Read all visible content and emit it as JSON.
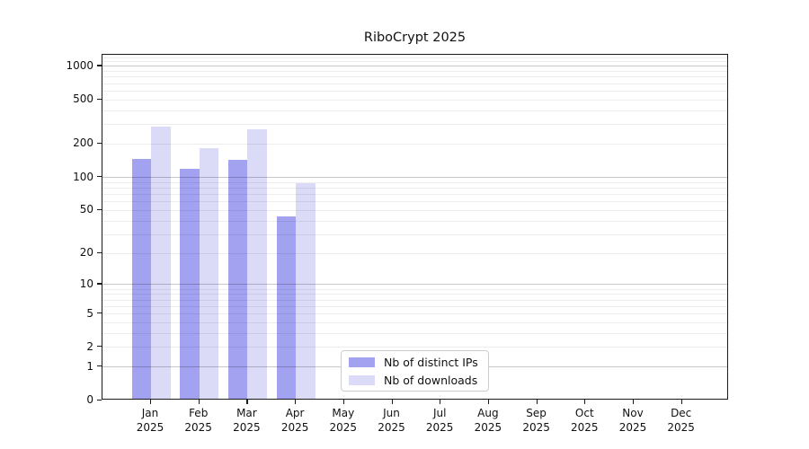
{
  "figure": {
    "background": "#ffffff"
  },
  "chart_data": {
    "type": "bar",
    "title": "RiboCrypt 2025",
    "categories": [
      "Jan",
      "Feb",
      "Mar",
      "Apr",
      "May",
      "Jun",
      "Jul",
      "Aug",
      "Sep",
      "Oct",
      "Nov",
      "Dec"
    ],
    "category_year": "2025",
    "series": [
      {
        "name": "Nb of distinct IPs",
        "color": "#a2a2f1",
        "values": [
          142,
          116,
          140,
          42,
          0,
          0,
          0,
          0,
          0,
          0,
          0,
          0
        ]
      },
      {
        "name": "Nb of downloads",
        "color": "#dbdbf8",
        "values": [
          277,
          177,
          263,
          85,
          0,
          0,
          0,
          0,
          0,
          0,
          0,
          0
        ]
      }
    ],
    "xlabel": "",
    "ylabel": "",
    "y_axis": {
      "scale": "log1p",
      "tick_labels": [
        "0",
        "1",
        "2",
        "5",
        "10",
        "20",
        "50",
        "100",
        "200",
        "500",
        "1000"
      ],
      "tick_values": [
        0,
        1,
        2,
        5,
        10,
        20,
        50,
        100,
        200,
        500,
        1000
      ],
      "major_gridline_values": [
        1,
        10,
        100,
        1000
      ],
      "ylim": [
        0,
        1250
      ],
      "grid": true
    },
    "legend": {
      "position": "bottom-center",
      "entries": [
        "Nb of distinct IPs",
        "Nb of downloads"
      ]
    }
  }
}
